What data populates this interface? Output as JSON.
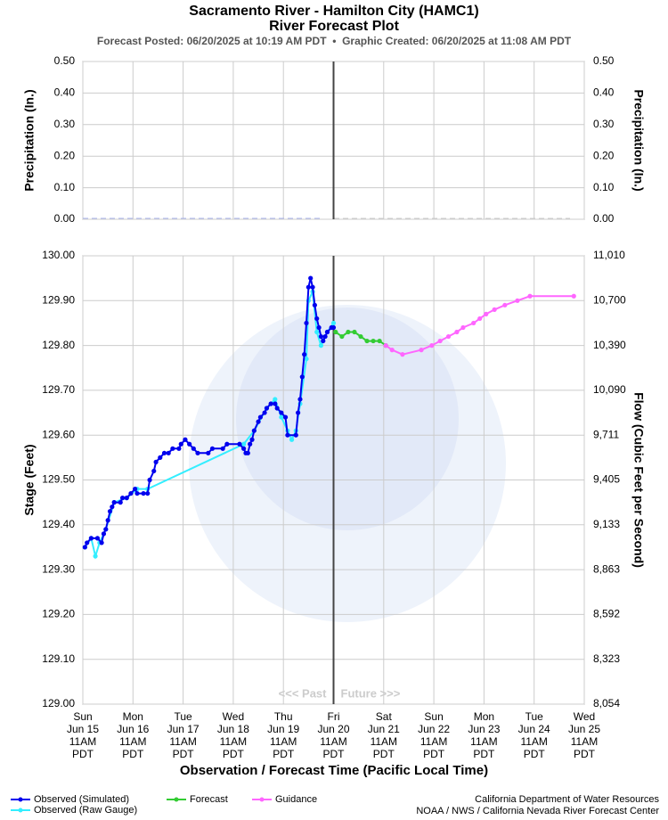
{
  "header": {
    "title": "Sacramento River - Hamilton City (HAMC1)",
    "subtitle": "River Forecast Plot",
    "posted": "Forecast Posted: 06/20/2025 at 10:19 AM PDT  •  Graphic Created: 06/20/2025 at 11:08 AM PDT"
  },
  "credits": [
    "California Department of Water Resources",
    "NOAA / NWS / California Nevada River Forecast Center"
  ],
  "chart_data": [
    {
      "type": "line",
      "ylabel": "Precipitation (In.)",
      "y2label": "Precipitation (In.)",
      "ylim": [
        0,
        0.5
      ],
      "yticks": [
        {
          "value": 0,
          "label": "0.00"
        },
        {
          "value": 0.1,
          "label": "0.10"
        },
        {
          "value": 0.2,
          "label": "0.20"
        },
        {
          "value": 0.3,
          "label": "0.30"
        },
        {
          "value": 0.4,
          "label": "0.40"
        },
        {
          "value": 0.5,
          "label": "0.50"
        }
      ],
      "grid": true
    },
    {
      "type": "line",
      "ylabel": "Stage (Feet)",
      "y2label": "Flow (Cubic Feet per Second)",
      "xlabel": "Observation / Forecast Time (Pacific Local Time)",
      "ylim": [
        129.0,
        130.0
      ],
      "yticks": [
        {
          "value": 129.0,
          "label": "129.00",
          "flow_label": "8,054"
        },
        {
          "value": 129.1,
          "label": "129.10",
          "flow_label": "8,323"
        },
        {
          "value": 129.2,
          "label": "129.20",
          "flow_label": "8,592"
        },
        {
          "value": 129.3,
          "label": "129.30",
          "flow_label": "8,863"
        },
        {
          "value": 129.4,
          "label": "129.40",
          "flow_label": "9,133"
        },
        {
          "value": 129.5,
          "label": "129.50",
          "flow_label": "9,405"
        },
        {
          "value": 129.6,
          "label": "129.60",
          "flow_label": "9,711"
        },
        {
          "value": 129.7,
          "label": "129.70",
          "flow_label": "10,090"
        },
        {
          "value": 129.8,
          "label": "129.80",
          "flow_label": "10,390"
        },
        {
          "value": 129.9,
          "label": "129.90",
          "flow_label": "10,700"
        },
        {
          "value": 130.0,
          "label": "130.00",
          "flow_label": "11,010"
        }
      ],
      "xlim": [
        "06-15 11:00",
        "06-25 11:00"
      ],
      "xticks": [
        {
          "value": "06-15 11:00",
          "label": [
            "Sun",
            "Jun 15",
            "11AM",
            "PDT"
          ]
        },
        {
          "value": "06-16 11:00",
          "label": [
            "Mon",
            "Jun 16",
            "11AM",
            "PDT"
          ]
        },
        {
          "value": "06-17 11:00",
          "label": [
            "Tue",
            "Jun 17",
            "11AM",
            "PDT"
          ]
        },
        {
          "value": "06-18 11:00",
          "label": [
            "Wed",
            "Jun 18",
            "11AM",
            "PDT"
          ]
        },
        {
          "value": "06-19 11:00",
          "label": [
            "Thu",
            "Jun 19",
            "11AM",
            "PDT"
          ]
        },
        {
          "value": "06-20 11:00",
          "label": [
            "Fri",
            "Jun 20",
            "11AM",
            "PDT"
          ]
        },
        {
          "value": "06-21 11:00",
          "label": [
            "Sat",
            "Jun 21",
            "11AM",
            "PDT"
          ]
        },
        {
          "value": "06-22 11:00",
          "label": [
            "Sun",
            "Jun 22",
            "11AM",
            "PDT"
          ]
        },
        {
          "value": "06-23 11:00",
          "label": [
            "Mon",
            "Jun 23",
            "11AM",
            "PDT"
          ]
        },
        {
          "value": "06-24 11:00",
          "label": [
            "Tue",
            "Jun 24",
            "11AM",
            "PDT"
          ]
        },
        {
          "value": "06-25 11:00",
          "label": [
            "Wed",
            "Jun 25",
            "11AM",
            "PDT"
          ]
        }
      ],
      "grid": true,
      "now": "06-20 11:00",
      "annotations": [
        "<<< Past",
        "Future >>>"
      ],
      "series": [
        {
          "name": "Observed (Raw Gauge)",
          "color": "#33eeff",
          "x": [
            "06-15 12:00",
            "06-15 15:00",
            "06-15 17:00",
            "06-15 19:00",
            "06-15 22:00",
            "06-16 02:00",
            "06-16 08:00",
            "06-16 13:00",
            "06-16 18:00",
            "06-18 16:00",
            "06-18 21:00",
            "06-19 03:00",
            "06-19 07:00",
            "06-19 10:00",
            "06-19 13:00",
            "06-19 15:00",
            "06-19 17:00",
            "06-19 19:00",
            "06-19 22:00",
            "06-19 23:00",
            "06-20 01:00",
            "06-20 03:00",
            "06-20 05:00",
            "06-20 08:00",
            "06-20 11:00"
          ],
          "values": [
            129.35,
            129.37,
            129.33,
            129.36,
            129.39,
            129.45,
            129.46,
            129.48,
            129.48,
            129.58,
            129.61,
            129.66,
            129.68,
            129.64,
            129.61,
            129.59,
            129.61,
            129.67,
            129.77,
            129.9,
            129.92,
            129.83,
            129.8,
            129.83,
            129.85
          ]
        },
        {
          "name": "Observed (Simulated)",
          "color": "#0000ee",
          "x": [
            "06-15 12:00",
            "06-15 13:00",
            "06-15 15:00",
            "06-15 18:00",
            "06-15 20:00",
            "06-15 21:00",
            "06-15 22:00",
            "06-15 23:00",
            "06-16 00:00",
            "06-16 01:00",
            "06-16 02:00",
            "06-16 05:00",
            "06-16 06:00",
            "06-16 08:00",
            "06-16 10:00",
            "06-16 12:00",
            "06-16 13:00",
            "06-16 16:00",
            "06-16 18:00",
            "06-16 19:00",
            "06-16 21:00",
            "06-16 22:00",
            "06-17 00:00",
            "06-17 02:00",
            "06-17 04:00",
            "06-17 06:00",
            "06-17 09:00",
            "06-17 10:00",
            "06-17 12:00",
            "06-17 14:00",
            "06-17 16:00",
            "06-17 18:00",
            "06-17 23:00",
            "06-18 01:00",
            "06-18 06:00",
            "06-18 08:00",
            "06-18 14:00",
            "06-18 16:00",
            "06-18 17:00",
            "06-18 18:00",
            "06-18 19:00",
            "06-18 20:00",
            "06-18 21:00",
            "06-18 23:00",
            "06-19 00:00",
            "06-19 02:00",
            "06-19 03:00",
            "06-19 05:00",
            "06-19 07:00",
            "06-19 08:00",
            "06-19 10:00",
            "06-19 12:00",
            "06-19 13:00",
            "06-19 17:00",
            "06-19 18:00",
            "06-19 19:00",
            "06-19 20:00",
            "06-19 21:00",
            "06-19 22:00",
            "06-19 23:00",
            "06-20 00:00",
            "06-20 01:00",
            "06-20 02:00",
            "06-20 03:00",
            "06-20 04:00",
            "06-20 05:00",
            "06-20 06:00",
            "06-20 07:00",
            "06-20 08:00",
            "06-20 10:00",
            "06-20 11:00"
          ],
          "values": [
            129.35,
            129.36,
            129.37,
            129.37,
            129.36,
            129.38,
            129.39,
            129.41,
            129.43,
            129.44,
            129.45,
            129.45,
            129.46,
            129.46,
            129.47,
            129.48,
            129.47,
            129.47,
            129.47,
            129.5,
            129.52,
            129.54,
            129.55,
            129.56,
            129.56,
            129.57,
            129.57,
            129.58,
            129.59,
            129.58,
            129.57,
            129.56,
            129.56,
            129.57,
            129.57,
            129.58,
            129.58,
            129.57,
            129.56,
            129.56,
            129.58,
            129.59,
            129.61,
            129.63,
            129.64,
            129.65,
            129.66,
            129.67,
            129.67,
            129.66,
            129.65,
            129.64,
            129.6,
            129.6,
            129.65,
            129.68,
            129.73,
            129.78,
            129.85,
            129.93,
            129.95,
            129.93,
            129.89,
            129.86,
            129.84,
            129.82,
            129.81,
            129.82,
            129.83,
            129.84,
            129.84
          ]
        },
        {
          "name": "Forecast",
          "color": "#33cc33",
          "x": [
            "06-20 12:00",
            "06-20 15:00",
            "06-20 18:00",
            "06-20 21:00",
            "06-21 00:00",
            "06-21 03:00",
            "06-21 06:00",
            "06-21 09:00",
            "06-21 12:00"
          ],
          "values": [
            129.83,
            129.82,
            129.83,
            129.83,
            129.82,
            129.81,
            129.81,
            129.81,
            129.8
          ]
        },
        {
          "name": "Guidance",
          "color": "#ff66ff",
          "x": [
            "06-21 12:00",
            "06-21 15:00",
            "06-21 20:00",
            "06-22 05:00",
            "06-22 10:00",
            "06-22 14:00",
            "06-22 18:00",
            "06-22 22:00",
            "06-23 01:00",
            "06-23 06:00",
            "06-23 09:00",
            "06-23 12:00",
            "06-23 16:00",
            "06-23 21:00",
            "06-24 03:00",
            "06-24 09:00",
            "06-25 06:00"
          ],
          "values": [
            129.8,
            129.79,
            129.78,
            129.79,
            129.8,
            129.81,
            129.82,
            129.83,
            129.84,
            129.85,
            129.86,
            129.87,
            129.88,
            129.89,
            129.9,
            129.91,
            129.91
          ]
        }
      ]
    }
  ]
}
